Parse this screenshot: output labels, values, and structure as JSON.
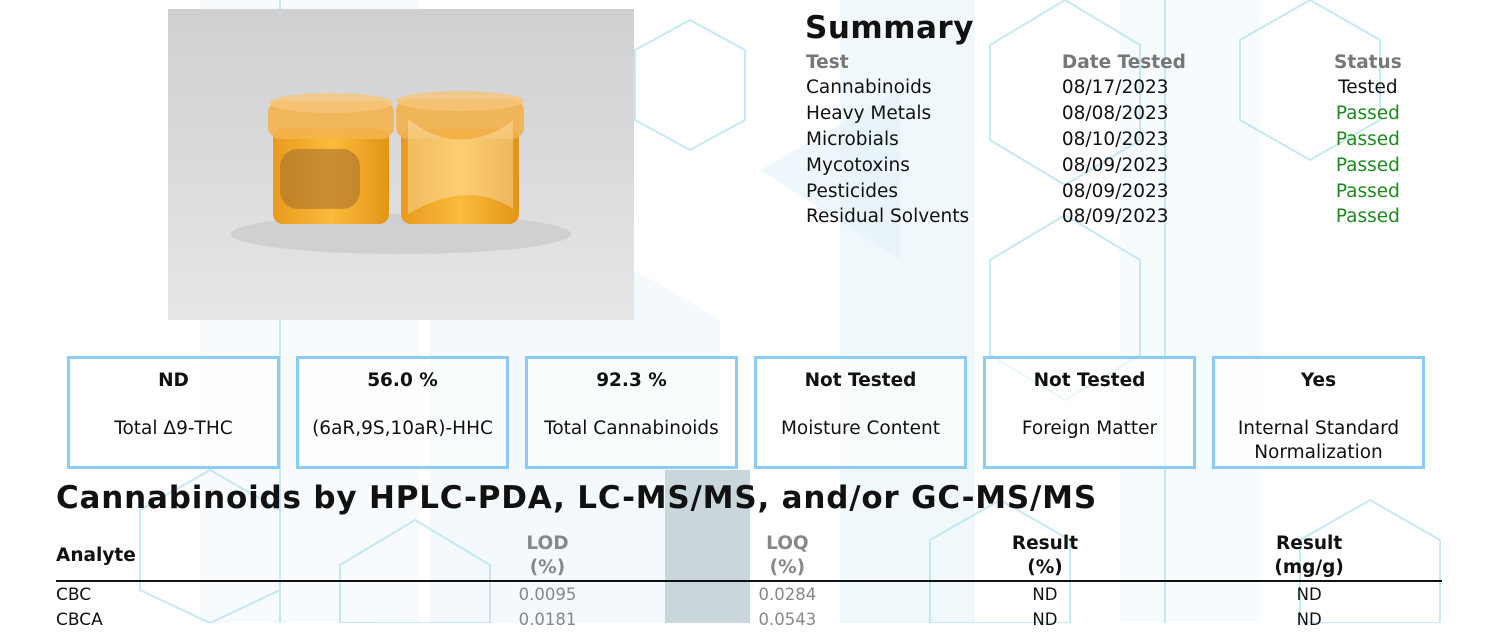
{
  "summary": {
    "title": "Summary",
    "headers": [
      "Test",
      "Date Tested",
      "Status"
    ],
    "rows": [
      {
        "test": "Cannabinoids",
        "date": "08/17/2023",
        "status": "Tested"
      },
      {
        "test": "Heavy Metals",
        "date": "08/08/2023",
        "status": "Passed"
      },
      {
        "test": "Microbials",
        "date": "08/10/2023",
        "status": "Passed"
      },
      {
        "test": "Mycotoxins",
        "date": "08/09/2023",
        "status": "Passed"
      },
      {
        "test": "Pesticides",
        "date": "08/09/2023",
        "status": "Passed"
      },
      {
        "test": "Residual Solvents",
        "date": "08/09/2023",
        "status": "Passed"
      }
    ]
  },
  "metrics": [
    {
      "value": "ND",
      "label": "Total Δ9-THC"
    },
    {
      "value": "56.0 %",
      "label": "(6aR,9S,10aR)-HHC"
    },
    {
      "value": "92.3 %",
      "label": "Total Cannabinoids"
    },
    {
      "value": "Not Tested",
      "label": "Moisture Content"
    },
    {
      "value": "Not Tested",
      "label": "Foreign Matter"
    },
    {
      "value": "Yes",
      "label": "Internal Standard Normalization"
    }
  ],
  "cannabinoids": {
    "title": "Cannabinoids by HPLC-PDA, LC-MS/MS, and/or GC-MS/MS",
    "headers": {
      "analyte": "Analyte",
      "lod": "LOD",
      "lod_unit": "(%)",
      "loq": "LOQ",
      "loq_unit": "(%)",
      "result_pct": "Result",
      "result_pct_unit": "(%)",
      "result_mg": "Result",
      "result_mg_unit": "(mg/g)"
    },
    "rows": [
      {
        "analyte": "CBC",
        "lod": "0.0095",
        "loq": "0.0284",
        "result_pct": "ND",
        "result_mg": "ND"
      },
      {
        "analyte": "CBCA",
        "lod": "0.0181",
        "loq": "0.0543",
        "result_pct": "ND",
        "result_mg": "ND"
      }
    ]
  },
  "colors": {
    "pass": "#1e8a1e",
    "box_border": "#8ccbf5",
    "watermark": "#d7ecf6"
  }
}
